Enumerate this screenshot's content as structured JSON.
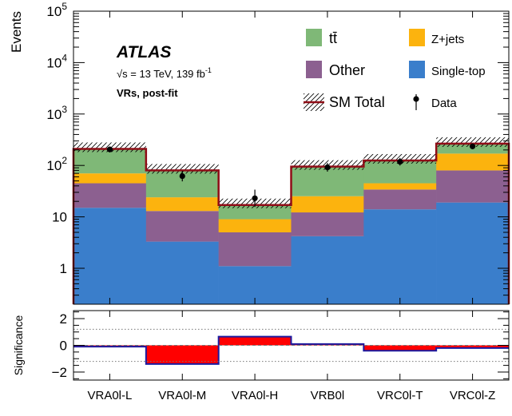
{
  "chart_data": [
    {
      "type": "bar",
      "stacked": true,
      "log_y": true,
      "ylabel": "Events",
      "ylim": [
        0.2,
        100000
      ],
      "y_tick_labels": [
        {
          "v": 1,
          "label": "1"
        },
        {
          "v": 10,
          "label": "10"
        },
        {
          "v": 100,
          "label": "10",
          "exp": "2"
        },
        {
          "v": 1000,
          "label": "10",
          "exp": "3"
        },
        {
          "v": 10000,
          "label": "10",
          "exp": "4"
        },
        {
          "v": 100000,
          "label": "10",
          "exp": "5"
        }
      ],
      "categories": [
        "VRA0l-L",
        "VRA0l-M",
        "VRA0l-H",
        "VRB0l",
        "VRC0l-T",
        "VRC0l-Z"
      ],
      "series": [
        {
          "name": "Single-top",
          "color": "#3a7ecb",
          "values": [
            15,
            3.3,
            1.1,
            4.2,
            14,
            19
          ]
        },
        {
          "name": "Other",
          "color": "#8c6090",
          "values": [
            30,
            9.7,
            3.9,
            8,
            20,
            61
          ]
        },
        {
          "name": "Z+jets",
          "color": "#fcb30e",
          "values": [
            25,
            11,
            4,
            13,
            11,
            90
          ]
        },
        {
          "name": "tt̄",
          "color": "#7fb877",
          "values": [
            140,
            56,
            8,
            70,
            80,
            95
          ]
        }
      ],
      "total": {
        "name": "SM Total",
        "color": "#8f0d17",
        "values": [
          210,
          80,
          17,
          95,
          125,
          265
        ]
      },
      "data": {
        "name": "Data",
        "values": [
          205,
          62,
          23,
          92,
          118,
          235
        ]
      },
      "annotations": {
        "experiment": "ATLAS",
        "energy_line": "√s = 13 TeV, 139 fb",
        "energy_exp": "-1",
        "region_line": "VRs, post-fit"
      },
      "legend": [
        {
          "label": "tt̄",
          "kind": "box",
          "color": "#7fb877"
        },
        {
          "label": "Z+jets",
          "kind": "box",
          "color": "#fcb30e"
        },
        {
          "label": "Other",
          "kind": "box",
          "color": "#8c6090"
        },
        {
          "label": "Single-top",
          "kind": "box",
          "color": "#3a7ecb"
        },
        {
          "label": "SM Total",
          "kind": "total"
        },
        {
          "label": "Data",
          "kind": "point"
        }
      ]
    },
    {
      "type": "bar",
      "ylabel": "Significance",
      "ylim": [
        -2.6,
        2.6
      ],
      "y_ticks": [
        -2,
        0,
        2
      ],
      "y_tick_labels": [
        "−2",
        "0",
        "2"
      ],
      "dotted_lines": [
        -1.2,
        1.2
      ],
      "categories": [
        "VRA0l-L",
        "VRA0l-M",
        "VRA0l-H",
        "VRB0l",
        "VRC0l-T",
        "VRC0l-Z"
      ],
      "values": [
        -0.1,
        -1.4,
        0.65,
        0.1,
        -0.4,
        -0.2
      ],
      "fill_color": "#ff0000",
      "edge_color": "#1a1aa0"
    }
  ]
}
